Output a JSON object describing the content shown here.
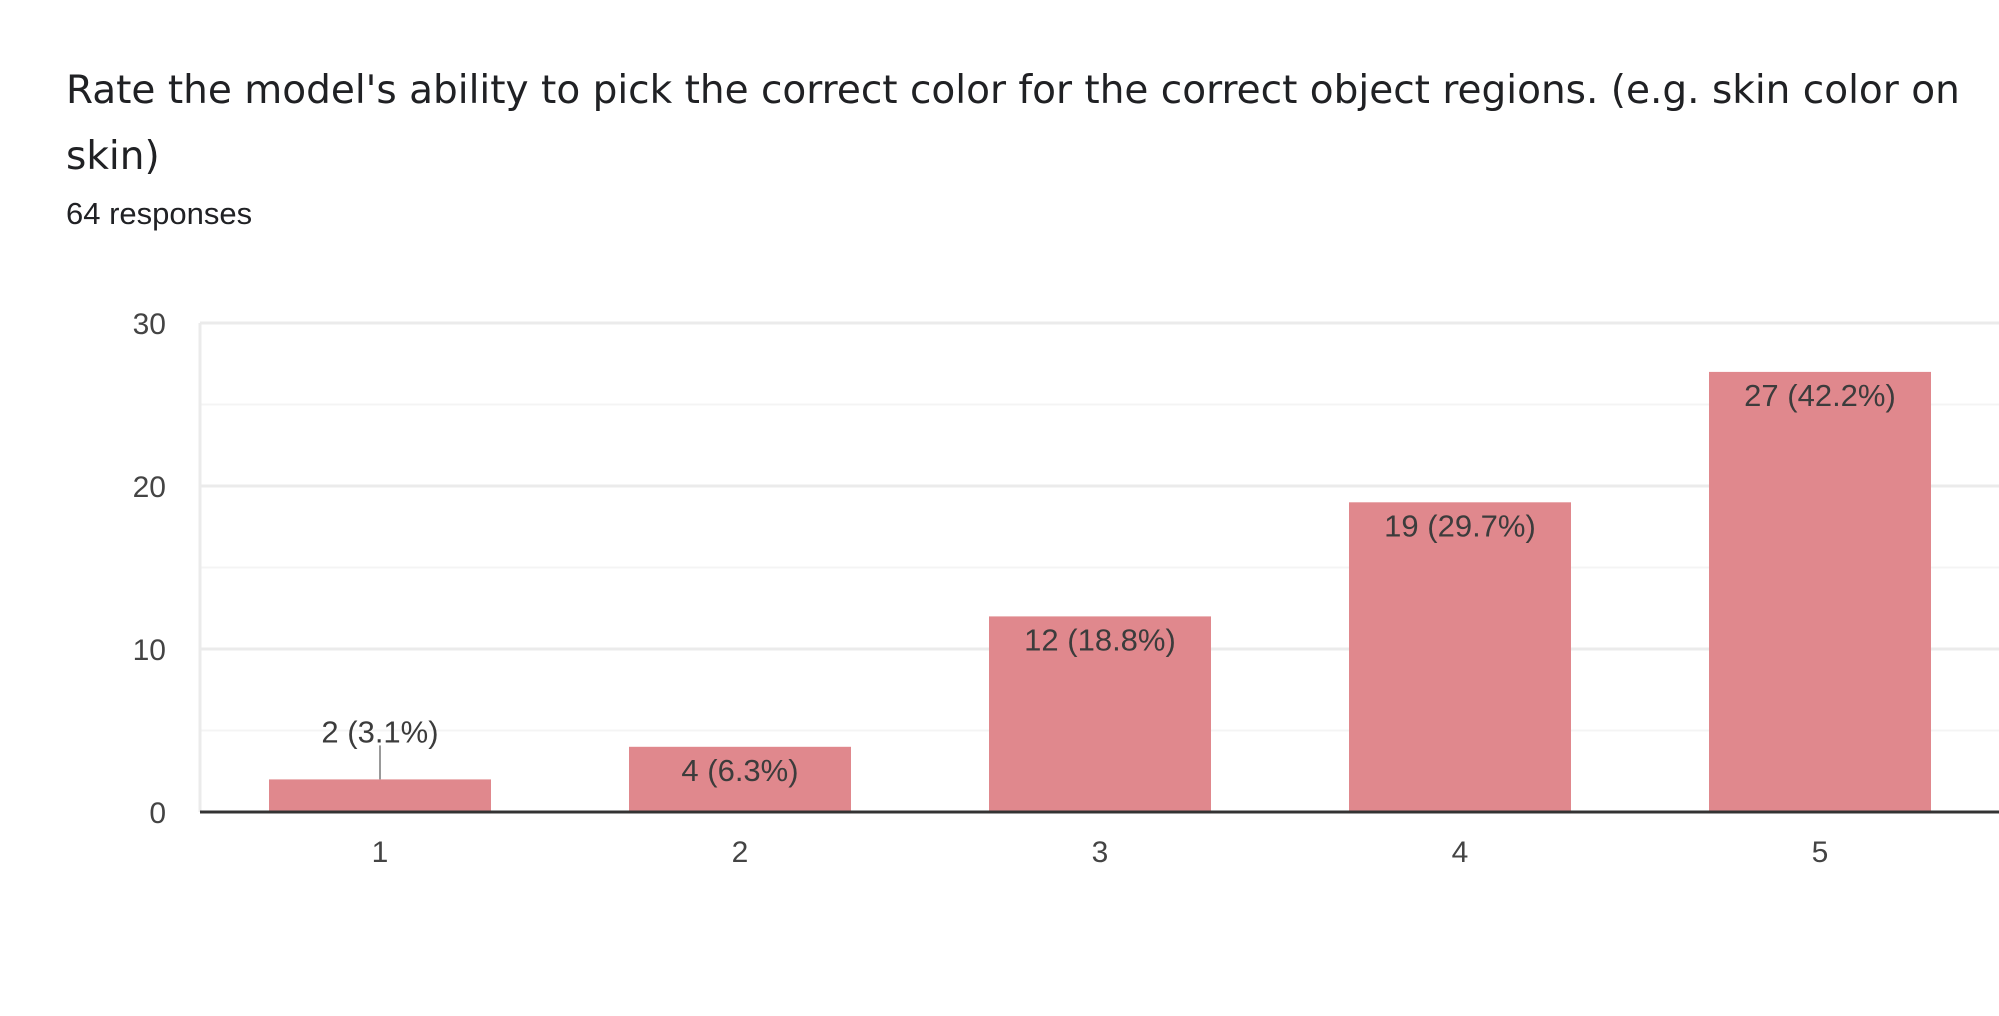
{
  "question": {
    "title": "Rate the model's ability to pick the correct color for the correct object regions. (e.g. skin color on skin)",
    "responses": "64 responses"
  },
  "colors": {
    "bar": "#e0888d",
    "grid": "#ebebeb",
    "minor_grid": "#f4f4f4",
    "axis": "#333333",
    "text": "#444444",
    "leader": "#999999"
  },
  "chart_data": {
    "type": "bar",
    "title": "",
    "xlabel": "",
    "ylabel": "",
    "categories": [
      "1",
      "2",
      "3",
      "4",
      "5"
    ],
    "values": [
      2,
      4,
      12,
      19,
      27
    ],
    "data_labels": [
      "2 (3.1%)",
      "4 (6.3%)",
      "12 (18.8%)",
      "19 (29.7%)",
      "27 (42.2%)"
    ],
    "y_ticks": [
      0,
      10,
      20,
      30
    ],
    "ylim": [
      0,
      30
    ],
    "grid": true,
    "legend": "none"
  }
}
